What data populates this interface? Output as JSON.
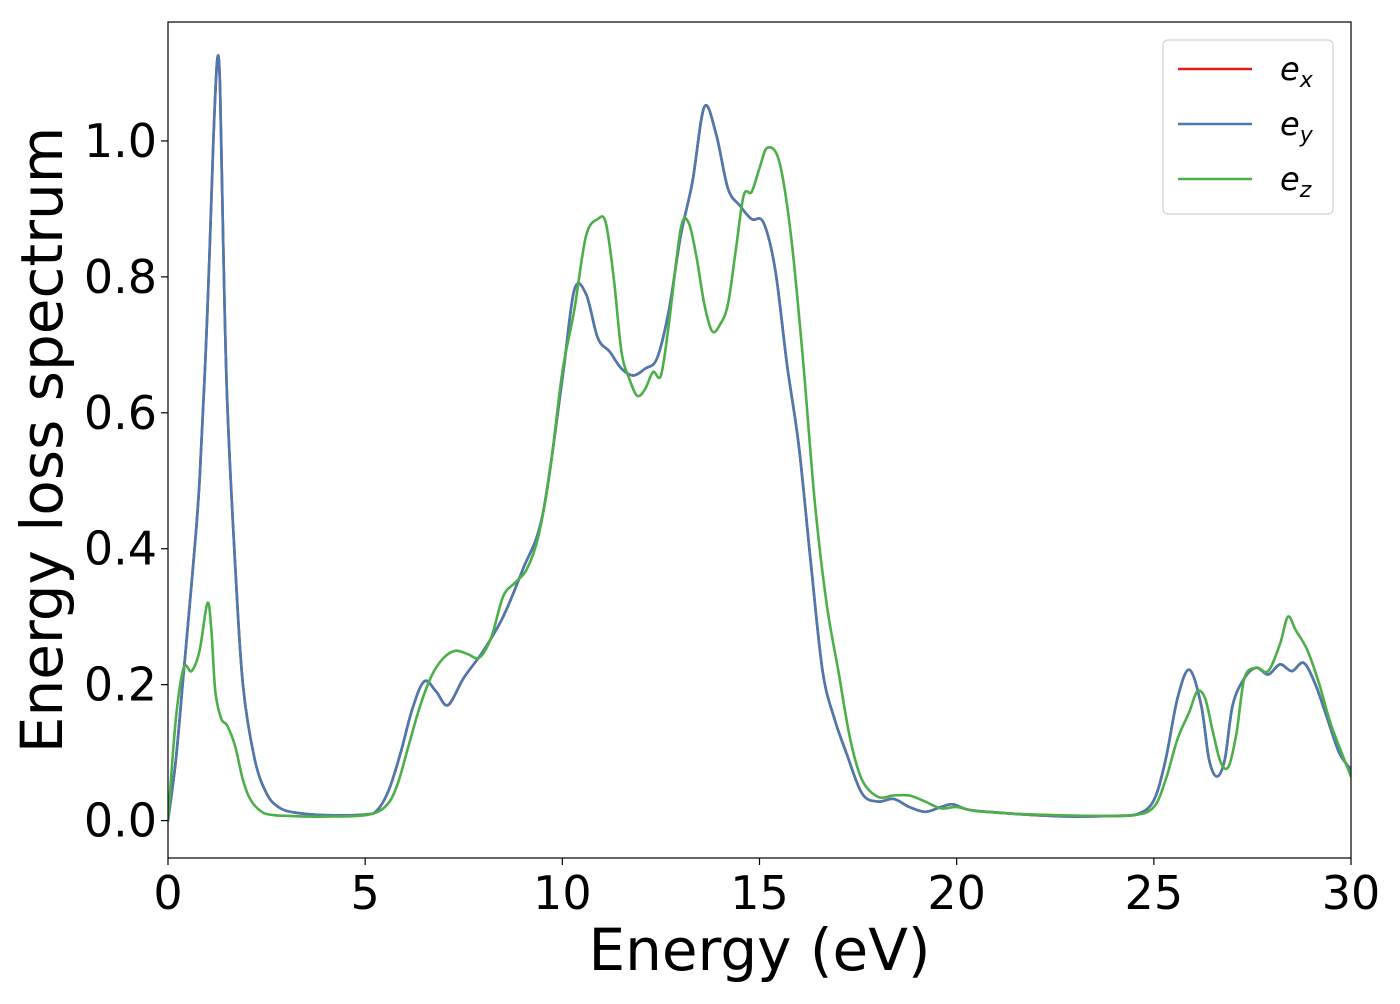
{
  "chart_data": {
    "type": "line",
    "title": "",
    "xlabel": "Energy (eV)",
    "ylabel": "Energy loss spectrum",
    "xlim": [
      0,
      30
    ],
    "ylim": [
      -0.055,
      1.175
    ],
    "xticks": [
      0,
      5,
      10,
      15,
      20,
      25,
      30
    ],
    "xtick_labels": [
      "0",
      "5",
      "10",
      "15",
      "20",
      "25",
      "30"
    ],
    "yticks": [
      0.0,
      0.2,
      0.4,
      0.6,
      0.8,
      1.0
    ],
    "ytick_labels": [
      "0.0",
      "0.2",
      "0.4",
      "0.6",
      "0.8",
      "1.0"
    ],
    "grid": false,
    "legend_position": "top-right",
    "series": [
      {
        "name": "e_x",
        "label_base": "e",
        "label_sub": "x",
        "color": "#e41a1c",
        "x": [
          0.0,
          0.2,
          0.4,
          0.6,
          0.8,
          1.0,
          1.15,
          1.25,
          1.32,
          1.4,
          1.5,
          1.7,
          1.9,
          2.2,
          2.5,
          2.8,
          3.2,
          4.0,
          5.0,
          5.3,
          5.6,
          5.9,
          6.2,
          6.5,
          6.8,
          7.1,
          7.5,
          8.0,
          8.5,
          9.0,
          9.5,
          10.0,
          10.3,
          10.6,
          10.9,
          11.2,
          11.5,
          11.8,
          12.1,
          12.4,
          12.7,
          13.0,
          13.3,
          13.6,
          13.9,
          14.2,
          14.5,
          14.8,
          15.1,
          15.4,
          15.7,
          16.0,
          16.3,
          16.6,
          16.9,
          17.2,
          17.6,
          18.0,
          18.4,
          18.8,
          19.2,
          19.6,
          19.9,
          20.3,
          21.0,
          22.0,
          23.0,
          24.0,
          24.6,
          25.0,
          25.3,
          25.6,
          25.9,
          26.2,
          26.4,
          26.6,
          26.8,
          27.0,
          27.3,
          27.6,
          27.9,
          28.2,
          28.5,
          28.8,
          29.1,
          29.4,
          29.7,
          30.0
        ],
        "values": [
          0.0,
          0.09,
          0.22,
          0.35,
          0.5,
          0.75,
          1.0,
          1.12,
          1.08,
          0.85,
          0.62,
          0.38,
          0.2,
          0.09,
          0.04,
          0.02,
          0.012,
          0.008,
          0.009,
          0.015,
          0.045,
          0.1,
          0.165,
          0.205,
          0.19,
          0.17,
          0.21,
          0.25,
          0.3,
          0.37,
          0.45,
          0.65,
          0.78,
          0.775,
          0.71,
          0.69,
          0.665,
          0.655,
          0.665,
          0.68,
          0.75,
          0.86,
          0.94,
          1.05,
          1.01,
          0.93,
          0.905,
          0.885,
          0.88,
          0.81,
          0.67,
          0.55,
          0.38,
          0.22,
          0.15,
          0.1,
          0.04,
          0.028,
          0.032,
          0.02,
          0.013,
          0.02,
          0.024,
          0.016,
          0.012,
          0.008,
          0.006,
          0.007,
          0.01,
          0.03,
          0.09,
          0.18,
          0.222,
          0.17,
          0.09,
          0.065,
          0.09,
          0.17,
          0.21,
          0.225,
          0.215,
          0.23,
          0.22,
          0.232,
          0.2,
          0.15,
          0.1,
          0.075
        ]
      },
      {
        "name": "e_y",
        "label_base": "e",
        "label_sub": "y",
        "color": "#4a7ab0",
        "x": [
          0.0,
          0.2,
          0.4,
          0.6,
          0.8,
          1.0,
          1.15,
          1.25,
          1.32,
          1.4,
          1.5,
          1.7,
          1.9,
          2.2,
          2.5,
          2.8,
          3.2,
          4.0,
          5.0,
          5.3,
          5.6,
          5.9,
          6.2,
          6.5,
          6.8,
          7.1,
          7.5,
          8.0,
          8.5,
          9.0,
          9.5,
          10.0,
          10.3,
          10.6,
          10.9,
          11.2,
          11.5,
          11.8,
          12.1,
          12.4,
          12.7,
          13.0,
          13.3,
          13.6,
          13.9,
          14.2,
          14.5,
          14.8,
          15.1,
          15.4,
          15.7,
          16.0,
          16.3,
          16.6,
          16.9,
          17.2,
          17.6,
          18.0,
          18.4,
          18.8,
          19.2,
          19.6,
          19.9,
          20.3,
          21.0,
          22.0,
          23.0,
          24.0,
          24.6,
          25.0,
          25.3,
          25.6,
          25.9,
          26.2,
          26.4,
          26.6,
          26.8,
          27.0,
          27.3,
          27.6,
          27.9,
          28.2,
          28.5,
          28.8,
          29.1,
          29.4,
          29.7,
          30.0
        ],
        "values": [
          0.0,
          0.09,
          0.22,
          0.35,
          0.5,
          0.75,
          1.0,
          1.12,
          1.08,
          0.85,
          0.62,
          0.38,
          0.2,
          0.09,
          0.04,
          0.02,
          0.012,
          0.008,
          0.009,
          0.015,
          0.045,
          0.1,
          0.165,
          0.205,
          0.19,
          0.17,
          0.21,
          0.25,
          0.3,
          0.37,
          0.45,
          0.65,
          0.78,
          0.775,
          0.71,
          0.69,
          0.665,
          0.655,
          0.665,
          0.68,
          0.75,
          0.86,
          0.94,
          1.05,
          1.01,
          0.93,
          0.905,
          0.885,
          0.88,
          0.81,
          0.67,
          0.55,
          0.38,
          0.22,
          0.15,
          0.1,
          0.04,
          0.028,
          0.032,
          0.02,
          0.013,
          0.02,
          0.024,
          0.016,
          0.012,
          0.008,
          0.006,
          0.007,
          0.01,
          0.03,
          0.09,
          0.18,
          0.222,
          0.17,
          0.09,
          0.065,
          0.09,
          0.17,
          0.21,
          0.225,
          0.215,
          0.23,
          0.22,
          0.232,
          0.2,
          0.15,
          0.1,
          0.075
        ]
      },
      {
        "name": "e_z",
        "label_base": "e",
        "label_sub": "z",
        "color": "#4daf4a",
        "x": [
          0.0,
          0.2,
          0.4,
          0.6,
          0.8,
          1.0,
          1.1,
          1.2,
          1.35,
          1.5,
          1.7,
          1.9,
          2.1,
          2.4,
          2.7,
          3.0,
          3.5,
          4.0,
          5.0,
          5.5,
          5.8,
          6.1,
          6.4,
          6.7,
          7.0,
          7.3,
          7.6,
          7.9,
          8.2,
          8.5,
          8.8,
          9.1,
          9.4,
          9.7,
          10.0,
          10.3,
          10.6,
          10.9,
          11.1,
          11.3,
          11.5,
          11.7,
          11.9,
          12.1,
          12.3,
          12.5,
          12.7,
          13.0,
          13.2,
          13.4,
          13.6,
          13.8,
          14.0,
          14.2,
          14.4,
          14.6,
          14.8,
          15.0,
          15.2,
          15.5,
          15.8,
          16.1,
          16.4,
          16.7,
          17.0,
          17.3,
          17.6,
          18.0,
          18.4,
          18.8,
          19.2,
          19.6,
          20.0,
          20.5,
          21.5,
          22.5,
          23.5,
          24.5,
          25.0,
          25.3,
          25.6,
          25.9,
          26.1,
          26.3,
          26.5,
          26.7,
          26.9,
          27.1,
          27.3,
          27.6,
          27.9,
          28.2,
          28.4,
          28.6,
          28.9,
          29.2,
          29.5,
          30.0
        ],
        "values": [
          0.0,
          0.15,
          0.225,
          0.22,
          0.25,
          0.32,
          0.28,
          0.19,
          0.15,
          0.14,
          0.11,
          0.06,
          0.03,
          0.012,
          0.008,
          0.007,
          0.006,
          0.006,
          0.008,
          0.02,
          0.05,
          0.11,
          0.17,
          0.215,
          0.24,
          0.25,
          0.245,
          0.24,
          0.27,
          0.33,
          0.35,
          0.37,
          0.42,
          0.52,
          0.66,
          0.75,
          0.86,
          0.885,
          0.88,
          0.8,
          0.69,
          0.65,
          0.625,
          0.635,
          0.66,
          0.655,
          0.73,
          0.87,
          0.88,
          0.83,
          0.76,
          0.72,
          0.73,
          0.76,
          0.84,
          0.92,
          0.925,
          0.96,
          0.99,
          0.97,
          0.86,
          0.68,
          0.47,
          0.32,
          0.22,
          0.12,
          0.06,
          0.035,
          0.037,
          0.037,
          0.028,
          0.018,
          0.02,
          0.014,
          0.01,
          0.008,
          0.007,
          0.008,
          0.02,
          0.06,
          0.12,
          0.16,
          0.19,
          0.18,
          0.13,
          0.085,
          0.08,
          0.13,
          0.21,
          0.225,
          0.22,
          0.26,
          0.3,
          0.28,
          0.25,
          0.2,
          0.14,
          0.065
        ]
      }
    ]
  }
}
